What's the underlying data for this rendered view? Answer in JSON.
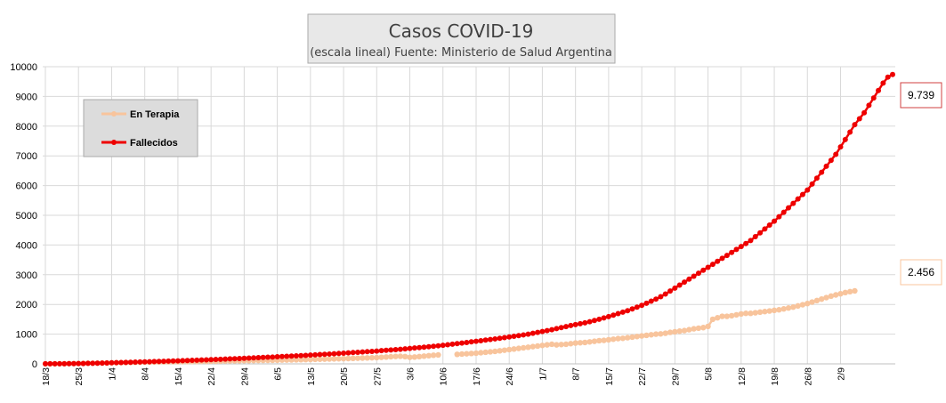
{
  "chart_data": {
    "type": "line",
    "title": "Casos COVID-19",
    "subtitle": "(escala lineal) Fuente: Ministerio de Salud Argentina",
    "x_start": "18/3",
    "x_end": "6/9",
    "tick_labels": [
      "18/3",
      "25/3",
      "1/4",
      "8/4",
      "15/4",
      "22/4",
      "29/4",
      "6/5",
      "13/5",
      "20/5",
      "27/5",
      "3/6",
      "10/6",
      "17/6",
      "24/6",
      "1/7",
      "8/7",
      "15/7",
      "22/7",
      "29/7",
      "5/8",
      "12/8",
      "19/8",
      "26/8",
      "2/9"
    ],
    "ylim": [
      0,
      10000
    ],
    "yticks": [
      0,
      1000,
      2000,
      3000,
      4000,
      5000,
      6000,
      7000,
      8000,
      9000,
      10000
    ],
    "grid": true,
    "legend_placement": "top-left",
    "series": [
      {
        "name": "En Terapia",
        "color": "#f8c49c",
        "gaps": [
          [
            84,
            87
          ]
        ],
        "values": [
          0,
          0,
          0,
          5,
          5,
          8,
          10,
          12,
          15,
          20,
          22,
          25,
          28,
          30,
          35,
          38,
          42,
          45,
          48,
          50,
          52,
          55,
          58,
          60,
          62,
          65,
          68,
          70,
          72,
          75,
          78,
          80,
          82,
          85,
          88,
          90,
          92,
          95,
          98,
          100,
          102,
          105,
          108,
          110,
          112,
          115,
          118,
          120,
          122,
          125,
          128,
          130,
          133,
          136,
          140,
          144,
          148,
          152,
          156,
          160,
          164,
          168,
          172,
          176,
          180,
          185,
          190,
          195,
          200,
          205,
          210,
          220,
          230,
          240,
          250,
          255,
          245,
          220,
          230,
          245,
          260,
          275,
          290,
          300,
          null,
          null,
          null,
          320,
          330,
          340,
          350,
          360,
          375,
          390,
          405,
          420,
          440,
          460,
          480,
          500,
          520,
          540,
          560,
          580,
          600,
          620,
          640,
          660,
          640,
          650,
          660,
          680,
          700,
          710,
          720,
          740,
          760,
          780,
          790,
          810,
          830,
          850,
          860,
          880,
          900,
          920,
          940,
          960,
          980,
          1000,
          1010,
          1030,
          1060,
          1080,
          1100,
          1120,
          1150,
          1180,
          1200,
          1220,
          1260,
          1500,
          1550,
          1600,
          1600,
          1620,
          1650,
          1680,
          1700,
          1700,
          1720,
          1740,
          1760,
          1780,
          1800,
          1820,
          1850,
          1880,
          1910,
          1950,
          1990,
          2030,
          2080,
          2130,
          2180,
          2230,
          2280,
          2320,
          2360,
          2400,
          2430,
          2456
        ]
      },
      {
        "name": "Fallecidos",
        "color": "#ee0000",
        "values": [
          2,
          2,
          3,
          4,
          5,
          6,
          8,
          10,
          13,
          17,
          20,
          24,
          27,
          31,
          36,
          40,
          44,
          48,
          53,
          58,
          63,
          67,
          72,
          77,
          82,
          87,
          92,
          97,
          102,
          107,
          112,
          118,
          124,
          130,
          136,
          142,
          148,
          154,
          160,
          167,
          174,
          181,
          188,
          195,
          202,
          209,
          216,
          223,
          230,
          238,
          246,
          254,
          262,
          270,
          278,
          286,
          295,
          304,
          313,
          322,
          331,
          340,
          350,
          360,
          370,
          380,
          390,
          400,
          410,
          420,
          432,
          444,
          456,
          468,
          480,
          492,
          506,
          520,
          534,
          548,
          562,
          576,
          590,
          608,
          626,
          644,
          662,
          680,
          700,
          720,
          740,
          760,
          780,
          800,
          820,
          840,
          862,
          884,
          906,
          928,
          950,
          975,
          1000,
          1030,
          1060,
          1090,
          1120,
          1150,
          1185,
          1220,
          1255,
          1290,
          1320,
          1350,
          1380,
          1420,
          1460,
          1500,
          1545,
          1590,
          1640,
          1690,
          1740,
          1790,
          1850,
          1910,
          1970,
          2040,
          2110,
          2180,
          2260,
          2350,
          2450,
          2550,
          2650,
          2750,
          2850,
          2950,
          3050,
          3150,
          3250,
          3350,
          3450,
          3550,
          3650,
          3750,
          3850,
          3950,
          4050,
          4150,
          4280,
          4410,
          4540,
          4670,
          4800,
          4950,
          5100,
          5250,
          5400,
          5550,
          5700,
          5850,
          6050,
          6250,
          6450,
          6650,
          6850,
          7050,
          7300,
          7550,
          7800,
          8050,
          8250,
          8450,
          8700,
          8950,
          9200,
          9450,
          9650,
          9739
        ]
      }
    ]
  },
  "callouts": {
    "fallecidos": "9.739",
    "terapia": "2.456"
  }
}
